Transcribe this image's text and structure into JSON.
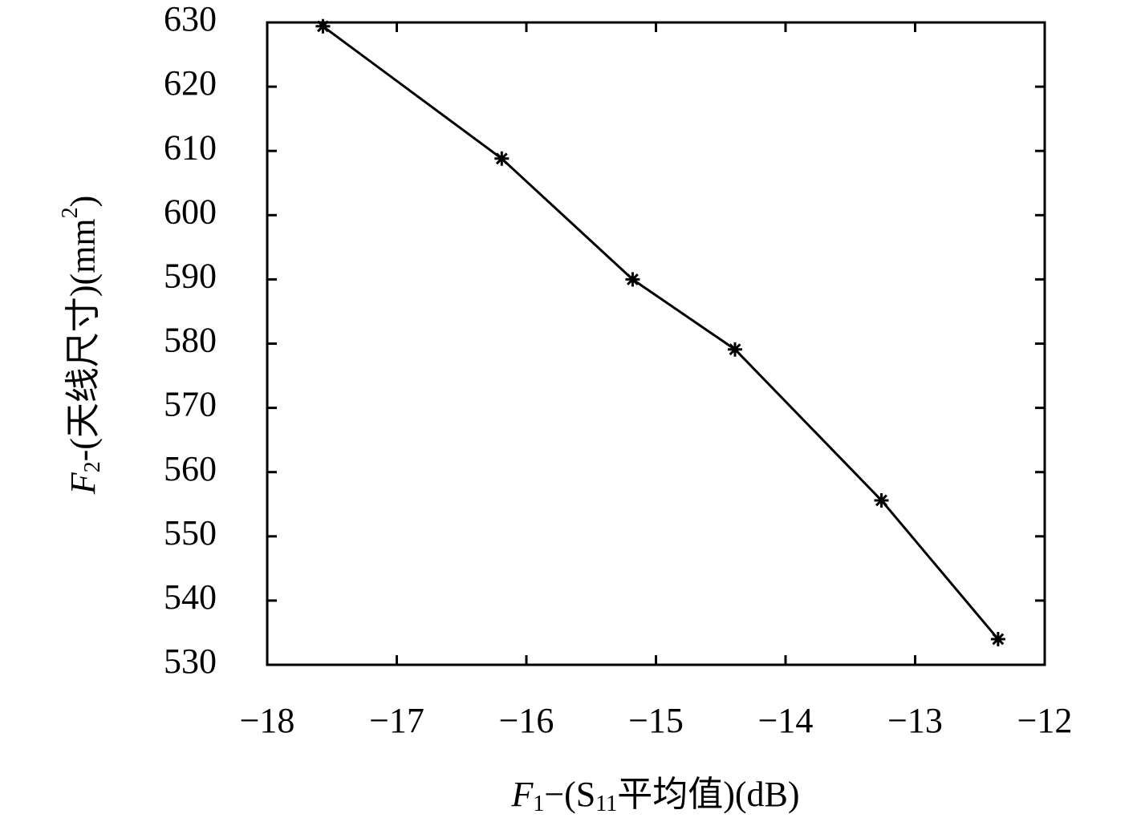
{
  "chart_data": {
    "type": "line",
    "xlabel_parts": [
      {
        "text": "F",
        "style": "italic"
      },
      {
        "text": "1",
        "style": "sub"
      },
      {
        "text": "−(S",
        "style": "normal"
      },
      {
        "text": "11",
        "style": "sub"
      },
      {
        "text": "平均值)(dB)",
        "style": "normal"
      }
    ],
    "ylabel_parts": [
      {
        "text": "F",
        "style": "italic"
      },
      {
        "text": "2",
        "style": "sub"
      },
      {
        "text": "-(天线尺寸)(mm",
        "style": "normal"
      },
      {
        "text": "2",
        "style": "sup"
      },
      {
        "text": ")",
        "style": "normal"
      }
    ],
    "x": [
      -17.57,
      -16.19,
      -15.18,
      -14.39,
      -13.26,
      -12.36
    ],
    "values": [
      629.4,
      608.8,
      590.0,
      579.1,
      555.6,
      534.0
    ],
    "color": "#000000",
    "marker": "asterisk",
    "xlim": [
      -18,
      -12
    ],
    "xticks": [
      {
        "value": -18,
        "label": "−18"
      },
      {
        "value": -17,
        "label": "−17"
      },
      {
        "value": -16,
        "label": "−16"
      },
      {
        "value": -15,
        "label": "−15"
      },
      {
        "value": -14,
        "label": "−14"
      },
      {
        "value": -13,
        "label": "−13"
      },
      {
        "value": -12,
        "label": "−12"
      }
    ],
    "ylim": [
      530,
      630
    ],
    "yticks": [
      530,
      540,
      550,
      560,
      570,
      580,
      590,
      600,
      610,
      620,
      630
    ],
    "grid": false
  }
}
